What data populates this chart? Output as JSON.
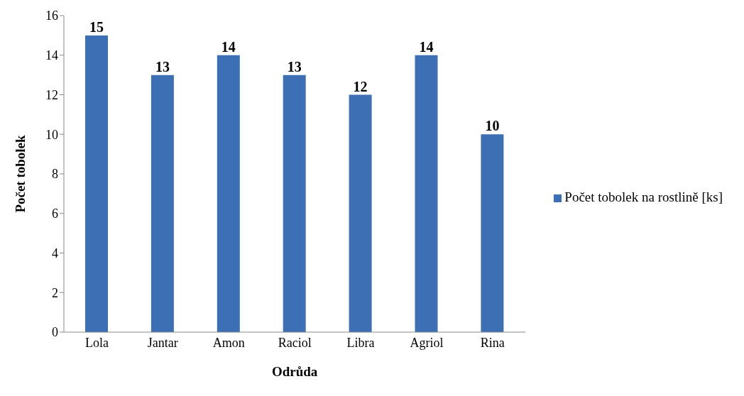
{
  "chart_data": {
    "type": "bar",
    "xlabel": "Odrůda",
    "ylabel": "Počet tobolek",
    "categories": [
      "Lola",
      "Jantar",
      "Amon",
      "Raciol",
      "Libra",
      "Agriol",
      "Rina"
    ],
    "series": [
      {
        "name": "Počet tobolek na rostlině [ks]",
        "color": "#3c6fb4",
        "values": [
          15,
          13,
          14,
          13,
          12,
          14,
          10
        ]
      }
    ],
    "ylim": [
      0,
      16
    ],
    "yticks": [
      0,
      2,
      4,
      6,
      8,
      10,
      12,
      14,
      16
    ],
    "data_labels": true,
    "legend": "right",
    "grid": false
  }
}
